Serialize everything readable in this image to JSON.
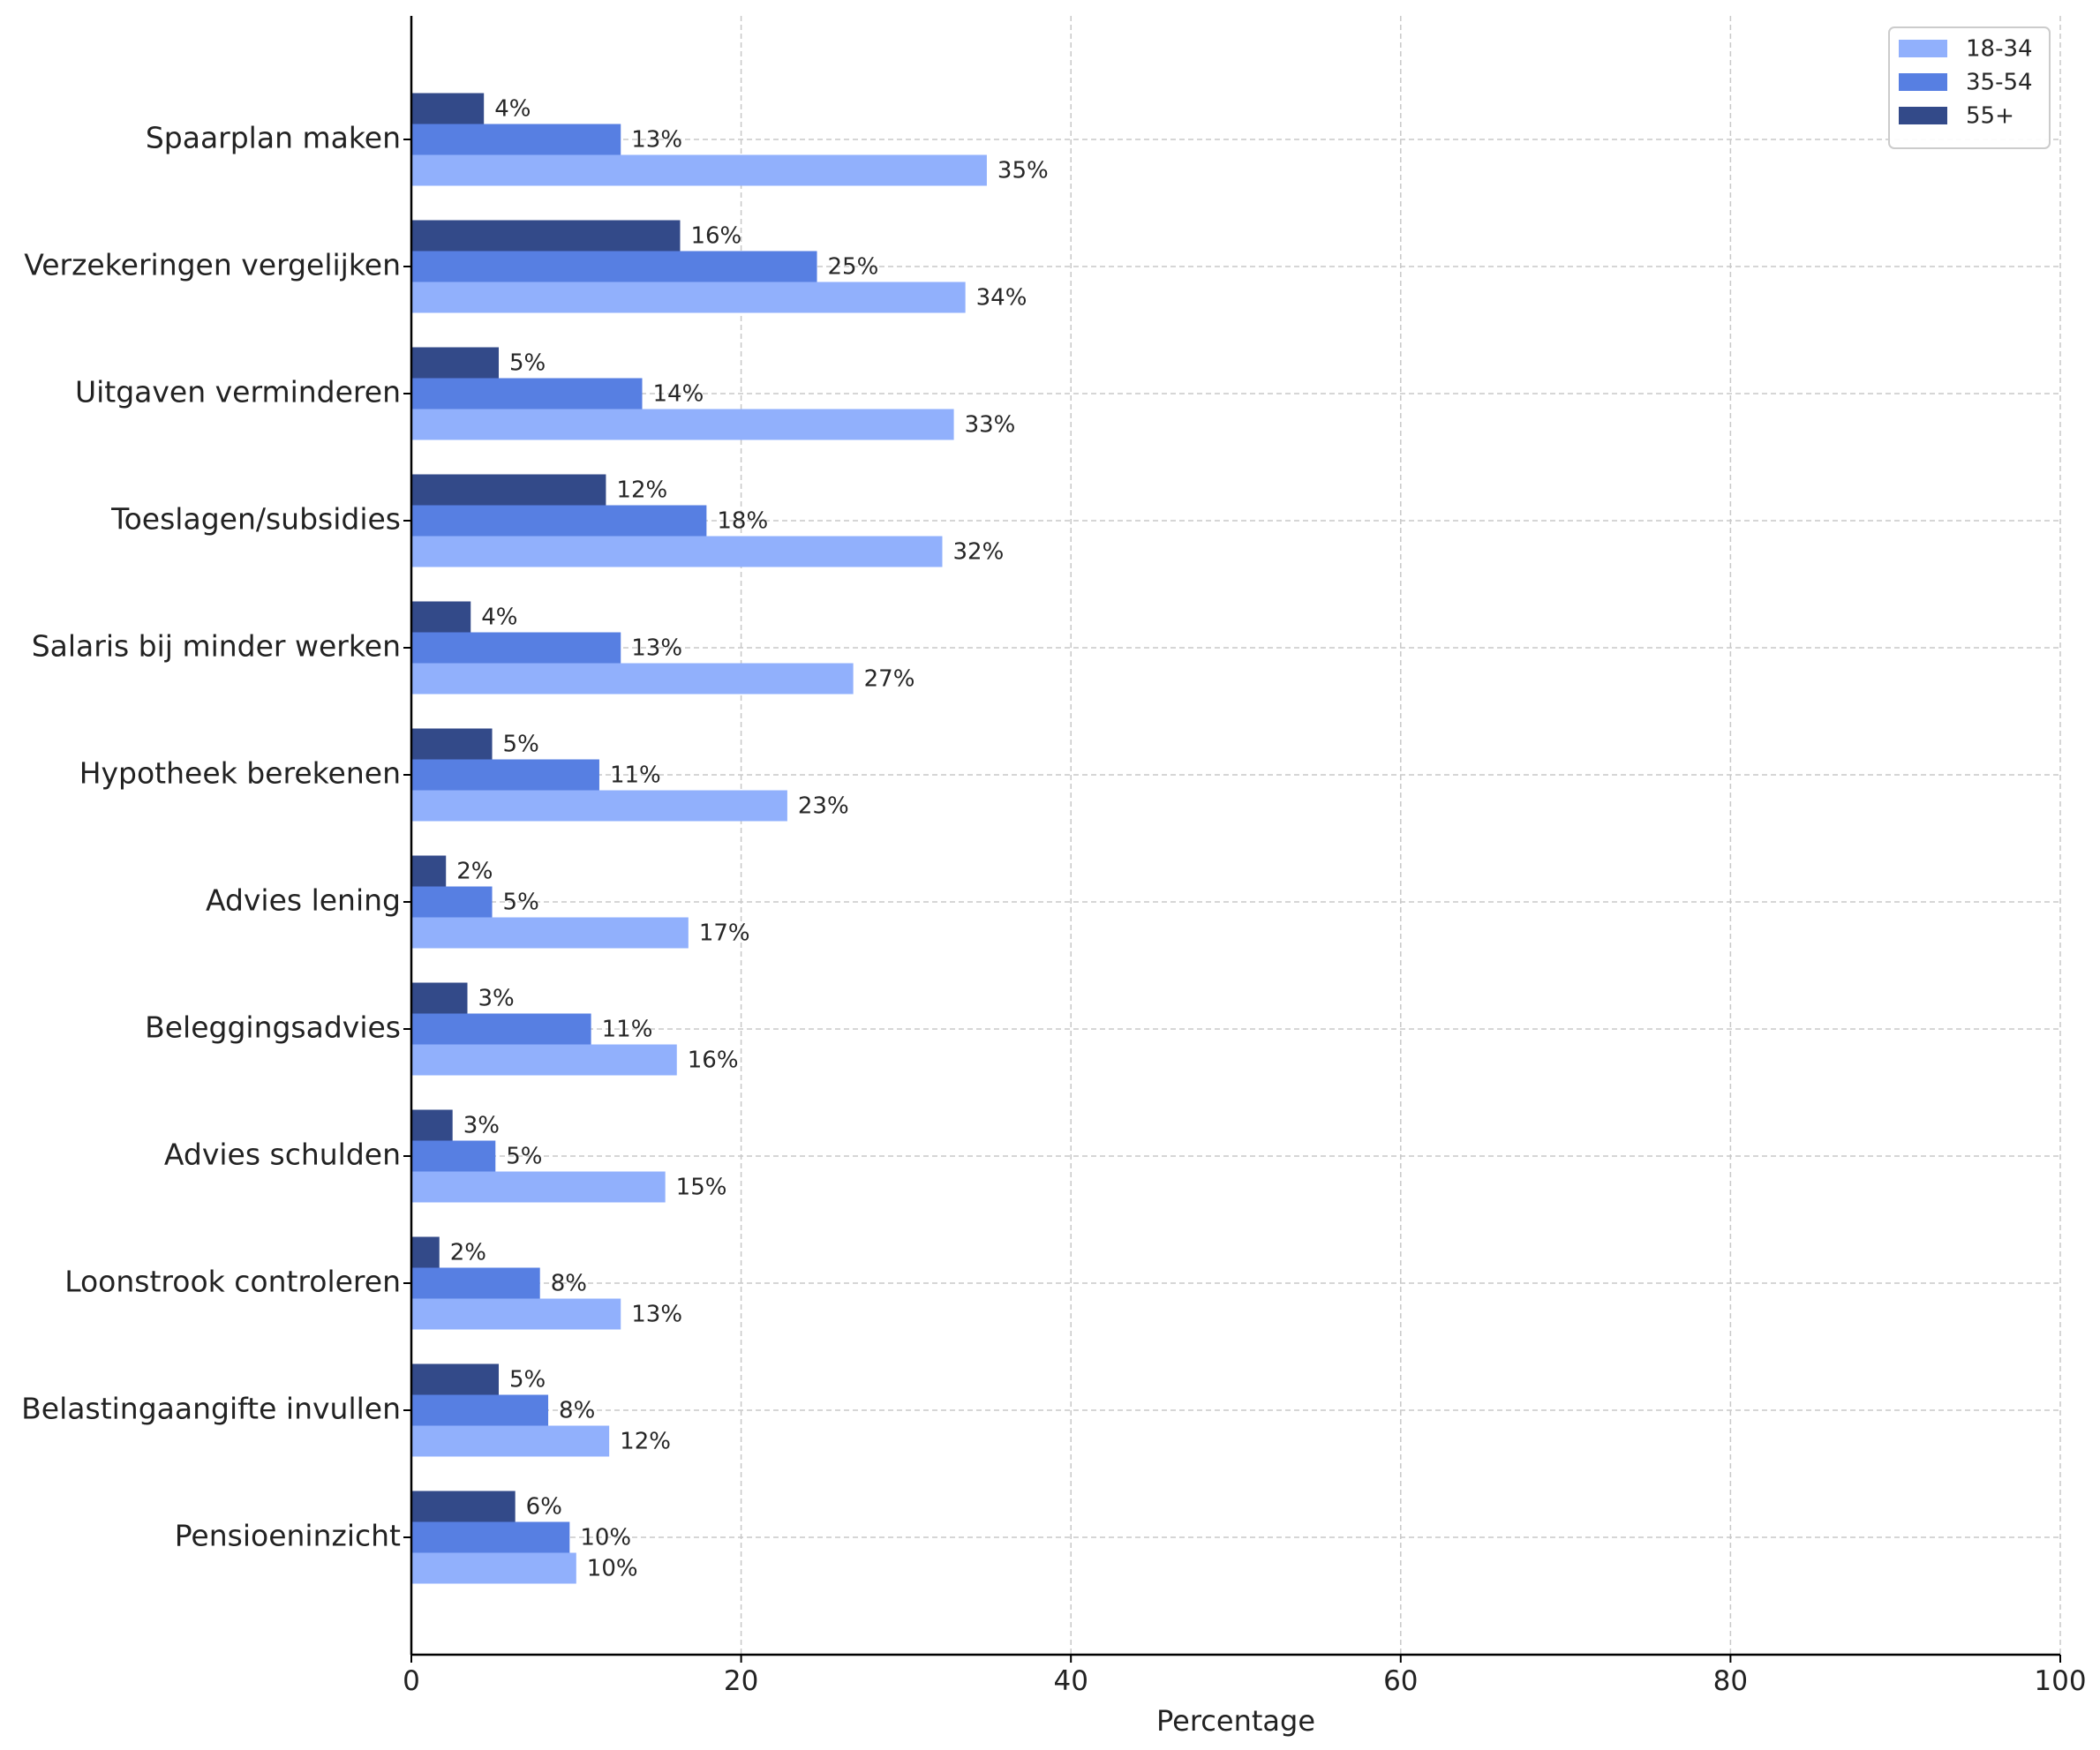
{
  "chart_data": {
    "type": "bar",
    "orientation": "horizontal",
    "title": "",
    "xlabel": "Percentage",
    "ylabel": "",
    "xlim": [
      0,
      100
    ],
    "x_ticks": [
      "0",
      "20",
      "40",
      "60",
      "80",
      "100"
    ],
    "grid": true,
    "legend_position": "top-right",
    "value_label_suffix": "%",
    "categories": [
      "Spaarplan maken",
      "Verzekeringen vergelijken",
      "Uitgaven verminderen",
      "Toeslagen/subsidies",
      "Salaris bij minder werken",
      "Hypotheek berekenen",
      "Advies lening",
      "Beleggingsadvies",
      "Advies schulden",
      "Loonstrook controleren",
      "Belastingaangifte invullen",
      "Pensioeninzicht"
    ],
    "series": [
      {
        "name": "18-34",
        "color": "#91b0fc",
        "values": [
          34.9,
          33.6,
          32.9,
          32.2,
          26.8,
          22.8,
          16.8,
          16.1,
          15.4,
          12.7,
          12.0,
          10.0
        ],
        "labels": [
          "35%",
          "34%",
          "33%",
          "32%",
          "27%",
          "23%",
          "17%",
          "16%",
          "15%",
          "13%",
          "12%",
          "10%"
        ]
      },
      {
        "name": "35-54",
        "color": "#577fe2",
        "values": [
          12.7,
          24.6,
          14.0,
          17.9,
          12.7,
          11.4,
          4.9,
          10.9,
          5.1,
          7.8,
          8.3,
          9.6
        ],
        "labels": [
          "13%",
          "25%",
          "14%",
          "18%",
          "13%",
          "11%",
          "5%",
          "11%",
          "5%",
          "8%",
          "8%",
          "10%"
        ]
      },
      {
        "name": "55+",
        "color": "#334a89",
        "values": [
          4.4,
          16.3,
          5.3,
          11.8,
          3.6,
          4.9,
          2.1,
          3.4,
          2.5,
          1.7,
          5.3,
          6.3
        ],
        "labels": [
          "4%",
          "16%",
          "5%",
          "12%",
          "4%",
          "5%",
          "2%",
          "3%",
          "3%",
          "2%",
          "5%",
          "6%"
        ]
      }
    ]
  }
}
